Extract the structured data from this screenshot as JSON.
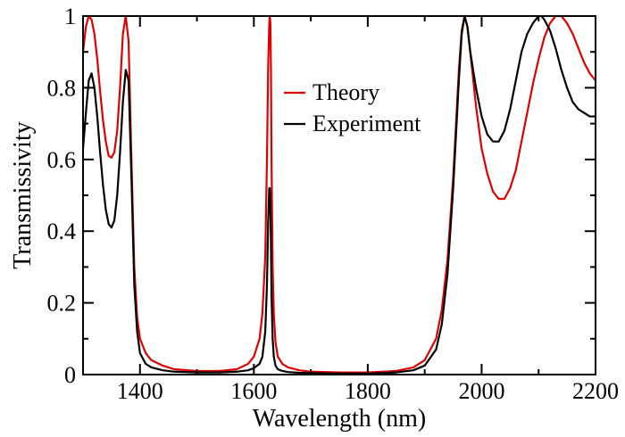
{
  "chart_data": {
    "type": "line",
    "xlabel": "Wavelength (nm)",
    "ylabel": "Transmissivity",
    "xlim": [
      1300,
      2200
    ],
    "ylim": [
      0,
      1
    ],
    "x_ticks": [
      "1400",
      "1600",
      "1800",
      "2000",
      "2200"
    ],
    "x_tick_values": [
      1400,
      1600,
      1800,
      2000,
      2200
    ],
    "y_ticks": [
      "0",
      "0.2",
      "0.4",
      "0.6",
      "0.8",
      "1"
    ],
    "y_tick_values": [
      0,
      0.2,
      0.4,
      0.6,
      0.8,
      1
    ],
    "grid": false,
    "legend_position": "top-center",
    "series": [
      {
        "name": "Theory",
        "color": "#e00000",
        "x": [
          1300,
          1305,
          1310,
          1315,
          1320,
          1325,
          1330,
          1335,
          1340,
          1345,
          1350,
          1355,
          1360,
          1365,
          1370,
          1375,
          1380,
          1385,
          1390,
          1395,
          1400,
          1410,
          1420,
          1440,
          1460,
          1500,
          1540,
          1570,
          1590,
          1600,
          1610,
          1615,
          1620,
          1623,
          1625,
          1627,
          1628,
          1629,
          1630,
          1631,
          1633,
          1635,
          1638,
          1642,
          1650,
          1660,
          1680,
          1700,
          1750,
          1800,
          1850,
          1880,
          1900,
          1920,
          1930,
          1940,
          1950,
          1955,
          1960,
          1965,
          1970,
          1975,
          1980,
          1990,
          2000,
          2010,
          2020,
          2030,
          2040,
          2050,
          2060,
          2070,
          2080,
          2090,
          2100,
          2110,
          2120,
          2130,
          2140,
          2150,
          2160,
          2170,
          2180,
          2190,
          2200
        ],
        "values": [
          0.9,
          0.97,
          1.0,
          0.99,
          0.95,
          0.88,
          0.79,
          0.71,
          0.65,
          0.61,
          0.605,
          0.62,
          0.68,
          0.8,
          0.95,
          1.0,
          0.93,
          0.6,
          0.3,
          0.16,
          0.1,
          0.06,
          0.04,
          0.025,
          0.015,
          0.01,
          0.01,
          0.015,
          0.03,
          0.05,
          0.1,
          0.17,
          0.33,
          0.6,
          0.85,
          0.98,
          1.0,
          0.98,
          0.85,
          0.6,
          0.3,
          0.17,
          0.09,
          0.05,
          0.03,
          0.02,
          0.012,
          0.008,
          0.006,
          0.006,
          0.01,
          0.02,
          0.04,
          0.1,
          0.18,
          0.32,
          0.55,
          0.7,
          0.85,
          0.96,
          1.0,
          0.97,
          0.9,
          0.75,
          0.63,
          0.56,
          0.51,
          0.49,
          0.49,
          0.52,
          0.57,
          0.65,
          0.73,
          0.81,
          0.88,
          0.94,
          0.98,
          1.0,
          1.0,
          0.98,
          0.95,
          0.91,
          0.87,
          0.84,
          0.82
        ]
      },
      {
        "name": "Experiment",
        "color": "#000000",
        "x": [
          1300,
          1305,
          1310,
          1315,
          1320,
          1325,
          1330,
          1335,
          1340,
          1345,
          1350,
          1355,
          1360,
          1365,
          1370,
          1375,
          1380,
          1385,
          1390,
          1395,
          1400,
          1410,
          1420,
          1440,
          1460,
          1500,
          1540,
          1570,
          1590,
          1600,
          1610,
          1615,
          1620,
          1623,
          1625,
          1627,
          1628,
          1629,
          1630,
          1631,
          1633,
          1635,
          1638,
          1642,
          1650,
          1660,
          1680,
          1700,
          1750,
          1800,
          1850,
          1880,
          1900,
          1920,
          1930,
          1940,
          1950,
          1955,
          1960,
          1965,
          1970,
          1975,
          1980,
          1990,
          2000,
          2010,
          2020,
          2030,
          2040,
          2050,
          2060,
          2070,
          2080,
          2090,
          2100,
          2105,
          2110,
          2120,
          2130,
          2140,
          2150,
          2160,
          2170,
          2180,
          2190,
          2200
        ],
        "values": [
          0.63,
          0.73,
          0.82,
          0.84,
          0.8,
          0.72,
          0.62,
          0.53,
          0.46,
          0.42,
          0.41,
          0.43,
          0.5,
          0.62,
          0.76,
          0.85,
          0.82,
          0.55,
          0.25,
          0.12,
          0.06,
          0.03,
          0.02,
          0.012,
          0.008,
          0.006,
          0.006,
          0.008,
          0.012,
          0.018,
          0.03,
          0.05,
          0.12,
          0.25,
          0.42,
          0.52,
          0.52,
          0.48,
          0.36,
          0.22,
          0.1,
          0.05,
          0.025,
          0.015,
          0.01,
          0.007,
          0.005,
          0.004,
          0.003,
          0.003,
          0.006,
          0.012,
          0.025,
          0.07,
          0.14,
          0.28,
          0.52,
          0.67,
          0.82,
          0.95,
          1.0,
          0.97,
          0.9,
          0.8,
          0.72,
          0.67,
          0.65,
          0.65,
          0.68,
          0.74,
          0.82,
          0.9,
          0.95,
          0.98,
          1.0,
          1.0,
          0.99,
          0.96,
          0.91,
          0.85,
          0.8,
          0.76,
          0.74,
          0.73,
          0.72,
          0.72
        ]
      }
    ]
  }
}
